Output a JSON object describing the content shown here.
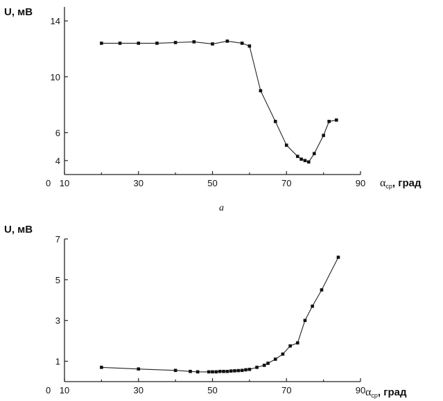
{
  "chart_data": [
    {
      "type": "line",
      "ylabel": "U, мВ",
      "xlabel": "α",
      "xlabel_sub": "ср",
      "xlabel_unit": ", град",
      "origin_label": "0",
      "xlim": [
        10,
        90
      ],
      "ylim": [
        3,
        15
      ],
      "xticks": [
        10,
        30,
        50,
        70,
        90
      ],
      "yticks": [
        4,
        6,
        10,
        14
      ],
      "caption": "а",
      "series": [
        {
          "x": [
            20,
            25,
            30,
            35,
            40,
            45,
            50,
            54,
            58,
            60,
            63,
            67,
            70,
            73,
            74,
            75,
            76,
            77.5,
            80,
            81.5,
            83.5
          ],
          "y": [
            12.4,
            12.4,
            12.4,
            12.4,
            12.45,
            12.5,
            12.35,
            12.55,
            12.4,
            12.2,
            9.0,
            6.8,
            5.1,
            4.3,
            4.1,
            4.0,
            3.9,
            4.5,
            5.8,
            6.8,
            6.9
          ]
        }
      ]
    },
    {
      "type": "line",
      "ylabel": "U, мВ",
      "xlabel": "α",
      "xlabel_sub": "ср",
      "xlabel_unit": ", град",
      "origin_label": "0",
      "xlim": [
        10,
        90
      ],
      "ylim": [
        0,
        7
      ],
      "xticks": [
        10,
        30,
        50,
        70,
        90
      ],
      "yticks": [
        1,
        3,
        5,
        7
      ],
      "series": [
        {
          "x": [
            20,
            30,
            40,
            44,
            46,
            49,
            50,
            51,
            52,
            53,
            54,
            55,
            56,
            57,
            58,
            59,
            60,
            62,
            64,
            65,
            67,
            69,
            71,
            73,
            75,
            77,
            79.5,
            84
          ],
          "y": [
            0.7,
            0.62,
            0.55,
            0.5,
            0.48,
            0.48,
            0.48,
            0.48,
            0.5,
            0.5,
            0.5,
            0.52,
            0.53,
            0.54,
            0.55,
            0.58,
            0.6,
            0.7,
            0.8,
            0.9,
            1.1,
            1.35,
            1.75,
            1.9,
            3.0,
            3.7,
            4.5,
            6.1
          ]
        }
      ]
    }
  ]
}
